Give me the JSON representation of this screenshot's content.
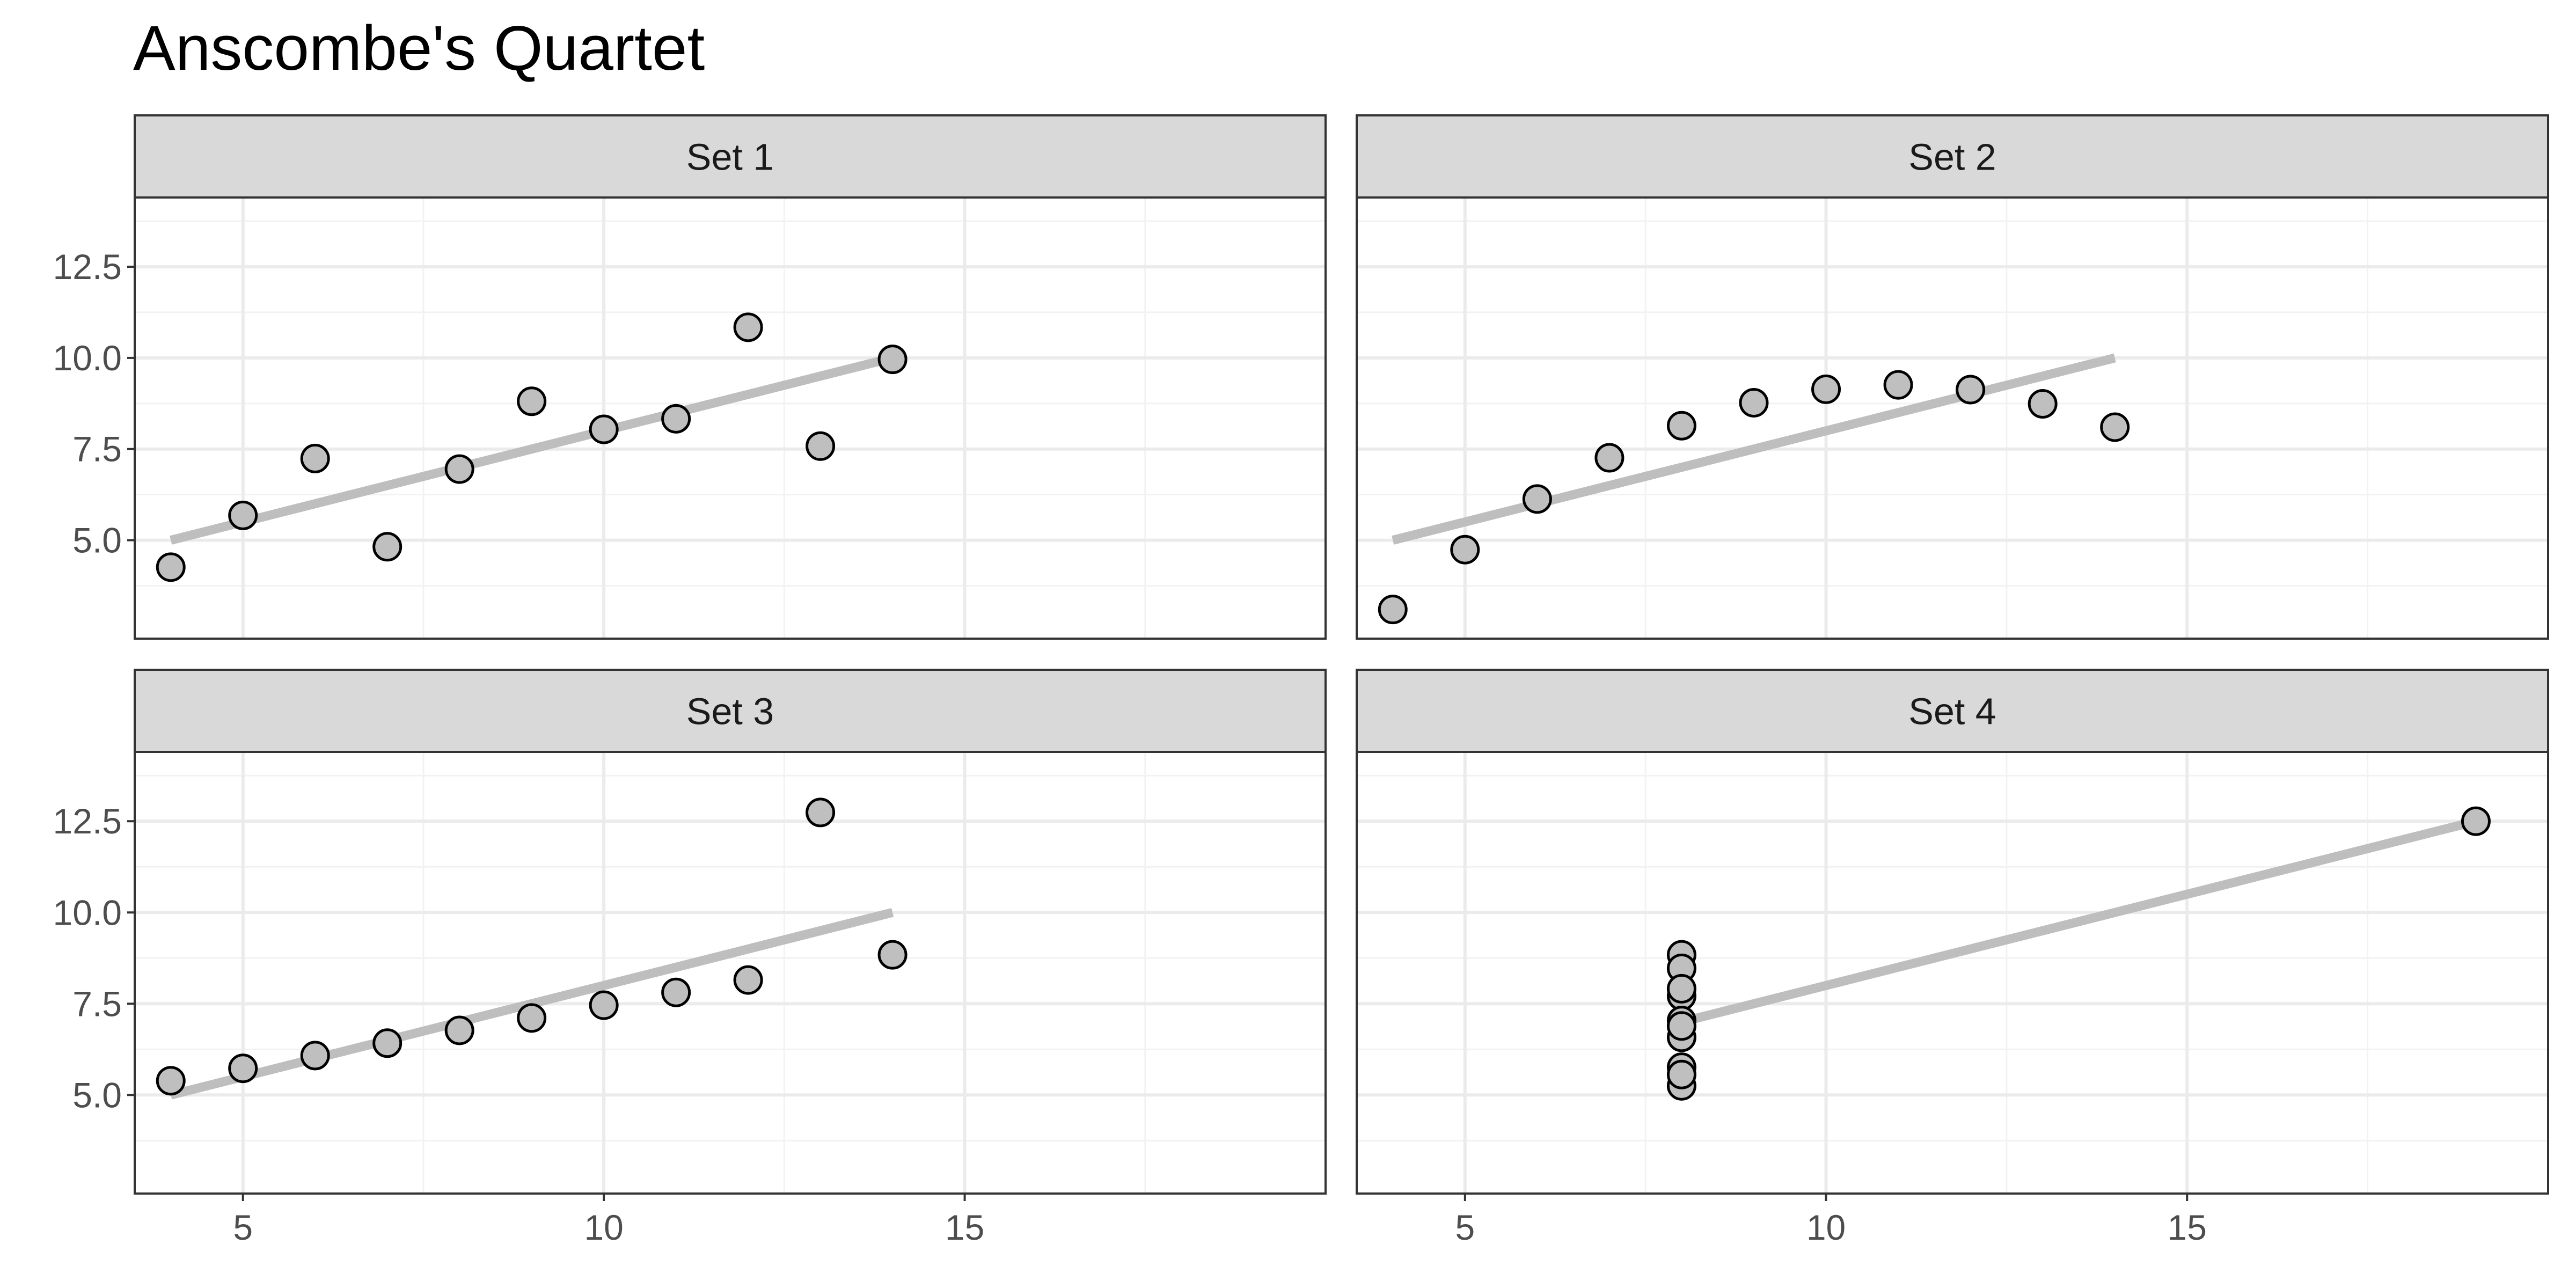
{
  "chart_data": {
    "type": "scatter",
    "title": "Anscombe's Quartet",
    "xlabel": "",
    "ylabel": "",
    "xlim": [
      3.5,
      20.0
    ],
    "ylim": [
      2.3,
      14.4
    ],
    "x_ticks": [
      5,
      10,
      15
    ],
    "x_tick_labels": [
      "5",
      "10",
      "15"
    ],
    "y_ticks": [
      5.0,
      7.5,
      10.0,
      12.5
    ],
    "y_tick_labels": [
      "5.0",
      "7.5",
      "10.0",
      "12.5"
    ],
    "grid": true,
    "shared_axes": true,
    "point_color": "#bfbfbf",
    "point_edge_color": "#000000",
    "line_color": "#bebebe",
    "strip_color": "#d9d9d9",
    "panels": [
      {
        "label": "Set 1",
        "x": [
          10,
          8,
          13,
          9,
          11,
          14,
          6,
          4,
          12,
          7,
          5
        ],
        "y": [
          8.04,
          6.95,
          7.58,
          8.81,
          8.33,
          9.96,
          7.24,
          4.26,
          10.84,
          4.82,
          5.68
        ],
        "fit": {
          "x": [
            4,
            14
          ],
          "y": [
            5.0,
            10.0
          ]
        }
      },
      {
        "label": "Set 2",
        "x": [
          10,
          8,
          13,
          9,
          11,
          14,
          6,
          4,
          12,
          7,
          5
        ],
        "y": [
          9.14,
          8.14,
          8.74,
          8.77,
          9.26,
          8.1,
          6.13,
          3.1,
          9.13,
          7.26,
          4.74
        ],
        "fit": {
          "x": [
            4,
            14
          ],
          "y": [
            5.0,
            10.0
          ]
        }
      },
      {
        "label": "Set 3",
        "x": [
          10,
          8,
          13,
          9,
          11,
          14,
          6,
          4,
          12,
          7,
          5
        ],
        "y": [
          7.46,
          6.77,
          12.74,
          7.11,
          7.81,
          8.84,
          6.08,
          5.39,
          8.15,
          6.42,
          5.73
        ],
        "fit": {
          "x": [
            4,
            14
          ],
          "y": [
            5.0,
            10.0
          ]
        }
      },
      {
        "label": "Set 4",
        "x": [
          8,
          8,
          8,
          8,
          8,
          8,
          8,
          19,
          8,
          8,
          8
        ],
        "y": [
          6.58,
          5.76,
          7.71,
          8.84,
          8.47,
          7.04,
          5.25,
          12.5,
          5.56,
          7.91,
          6.89
        ],
        "fit": {
          "x": [
            8,
            19
          ],
          "y": [
            7.0,
            12.5
          ]
        }
      }
    ]
  }
}
